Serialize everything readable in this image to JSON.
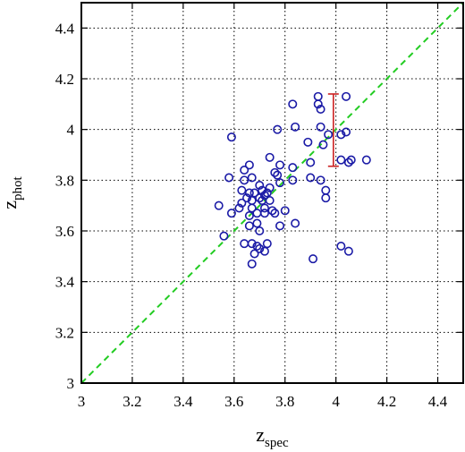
{
  "chart_data": {
    "type": "scatter",
    "xlabel": "z",
    "xlabel_sub": "spec",
    "ylabel": "z",
    "ylabel_sub": "phot",
    "xlim": [
      3.0,
      4.5
    ],
    "ylim": [
      3.0,
      4.5
    ],
    "xticks": [
      3,
      3.2,
      3.4,
      3.6,
      3.8,
      4,
      4.2,
      4.4
    ],
    "xtick_labels": [
      "3",
      "3.2",
      "3.4",
      "3.6",
      "3.8",
      "4",
      "4.2",
      "4.4"
    ],
    "yticks": [
      3,
      3.2,
      3.4,
      3.6,
      3.8,
      4,
      4.2,
      4.4
    ],
    "ytick_labels": [
      "3",
      "3.2",
      "3.4",
      "3.6",
      "3.8",
      "4",
      "4.2",
      "4.4"
    ],
    "grid": true,
    "colors": {
      "points": "#1a1aa6",
      "reference_line": "#22cc22",
      "error_bar": "#cc2222"
    },
    "reference_line": {
      "style": "dashed",
      "from": [
        3.0,
        3.0
      ],
      "to": [
        4.5,
        4.5
      ]
    },
    "error_bar": {
      "x": 3.99,
      "y_low": 3.855,
      "y_high": 4.14
    },
    "points": [
      [
        3.54,
        3.7
      ],
      [
        3.56,
        3.58
      ],
      [
        3.58,
        3.81
      ],
      [
        3.59,
        3.97
      ],
      [
        3.59,
        3.67
      ],
      [
        3.62,
        3.69
      ],
      [
        3.63,
        3.71
      ],
      [
        3.63,
        3.76
      ],
      [
        3.64,
        3.8
      ],
      [
        3.64,
        3.84
      ],
      [
        3.64,
        3.55
      ],
      [
        3.65,
        3.73
      ],
      [
        3.66,
        3.86
      ],
      [
        3.66,
        3.75
      ],
      [
        3.66,
        3.66
      ],
      [
        3.66,
        3.62
      ],
      [
        3.67,
        3.81
      ],
      [
        3.67,
        3.72
      ],
      [
        3.67,
        3.69
      ],
      [
        3.67,
        3.55
      ],
      [
        3.67,
        3.47
      ],
      [
        3.68,
        3.75
      ],
      [
        3.68,
        3.51
      ],
      [
        3.69,
        3.67
      ],
      [
        3.69,
        3.63
      ],
      [
        3.69,
        3.54
      ],
      [
        3.7,
        3.78
      ],
      [
        3.7,
        3.73
      ],
      [
        3.7,
        3.6
      ],
      [
        3.7,
        3.53
      ],
      [
        3.71,
        3.76
      ],
      [
        3.71,
        3.72
      ],
      [
        3.72,
        3.74
      ],
      [
        3.72,
        3.69
      ],
      [
        3.72,
        3.67
      ],
      [
        3.72,
        3.52
      ],
      [
        3.73,
        3.75
      ],
      [
        3.73,
        3.55
      ],
      [
        3.74,
        3.89
      ],
      [
        3.74,
        3.77
      ],
      [
        3.74,
        3.72
      ],
      [
        3.75,
        3.68
      ],
      [
        3.76,
        3.83
      ],
      [
        3.76,
        3.67
      ],
      [
        3.77,
        4.0
      ],
      [
        3.77,
        3.82
      ],
      [
        3.78,
        3.86
      ],
      [
        3.78,
        3.79
      ],
      [
        3.78,
        3.62
      ],
      [
        3.8,
        3.68
      ],
      [
        3.83,
        4.1
      ],
      [
        3.83,
        3.85
      ],
      [
        3.83,
        3.8
      ],
      [
        3.84,
        4.01
      ],
      [
        3.84,
        3.63
      ],
      [
        3.89,
        3.95
      ],
      [
        3.9,
        3.81
      ],
      [
        3.9,
        3.87
      ],
      [
        3.91,
        3.49
      ],
      [
        3.93,
        4.13
      ],
      [
        3.93,
        4.1
      ],
      [
        3.94,
        4.08
      ],
      [
        3.94,
        4.01
      ],
      [
        3.94,
        3.8
      ],
      [
        3.95,
        3.94
      ],
      [
        3.96,
        3.76
      ],
      [
        3.96,
        3.73
      ],
      [
        3.97,
        3.98
      ],
      [
        4.02,
        3.98
      ],
      [
        4.02,
        3.88
      ],
      [
        4.02,
        3.54
      ],
      [
        4.04,
        4.13
      ],
      [
        4.04,
        3.99
      ],
      [
        4.05,
        3.87
      ],
      [
        4.05,
        3.52
      ],
      [
        4.06,
        3.88
      ],
      [
        4.12,
        3.88
      ]
    ]
  }
}
